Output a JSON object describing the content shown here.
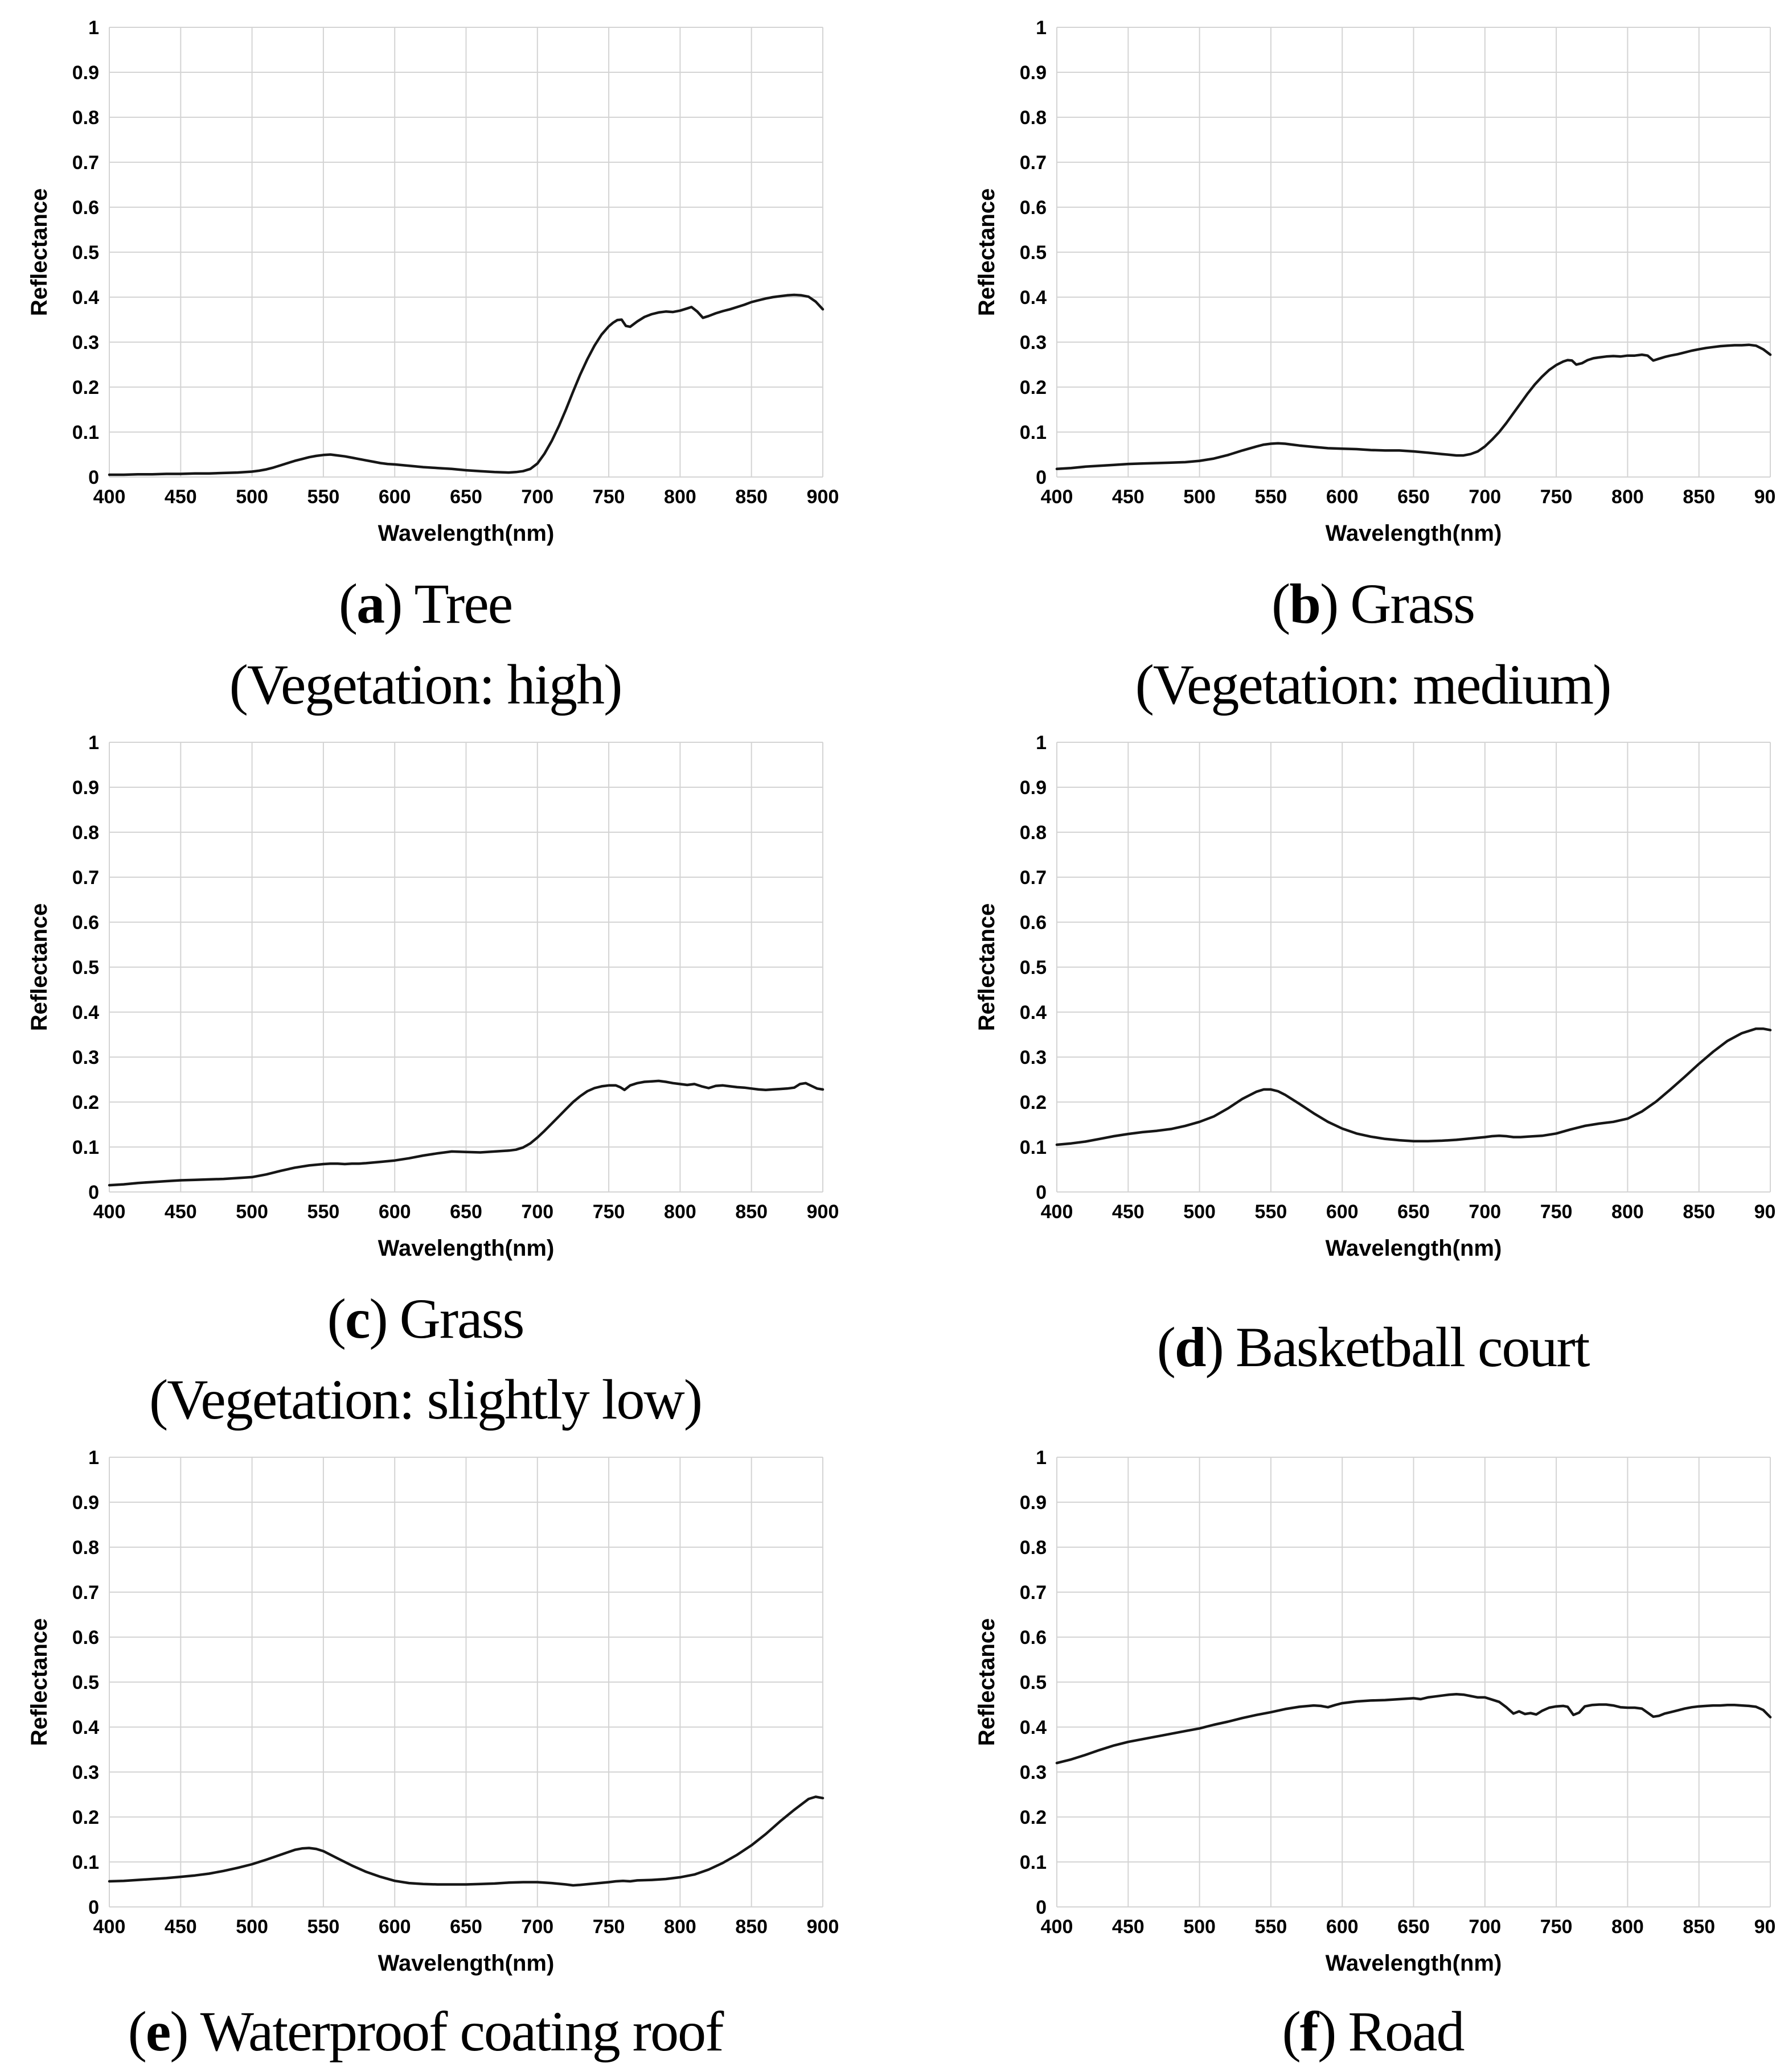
{
  "colors": {
    "background": "#ffffff",
    "grid": "#d4d4d4",
    "line": "#161616",
    "text": "#000000"
  },
  "axes": {
    "x_tick_values": [
      400,
      450,
      500,
      550,
      600,
      650,
      700,
      750,
      800,
      850,
      900
    ],
    "x_tick_labels": [
      "400",
      "450",
      "500",
      "550",
      "600",
      "650",
      "700",
      "750",
      "800",
      "850",
      "900"
    ],
    "y_tick_values": [
      0,
      0.1,
      0.2,
      0.3,
      0.4,
      0.5,
      0.6,
      0.7,
      0.8,
      0.9,
      1
    ],
    "y_tick_labels": [
      "0",
      "0.1",
      "0.2",
      "0.3",
      "0.4",
      "0.5",
      "0.6",
      "0.7",
      "0.8",
      "0.9",
      "1"
    ]
  },
  "chart_data": [
    {
      "id": "a",
      "type": "line",
      "caption": {
        "open": "(",
        "letter": "a",
        "close": ")",
        "title": "Tree",
        "subtitle": "(Vegetation: high)"
      },
      "xlabel": "Wavelength(nm)",
      "ylabel": "Reflectance",
      "xlim": [
        400,
        900
      ],
      "ylim": [
        0,
        1
      ],
      "grid": true,
      "x": [
        400,
        410,
        420,
        430,
        440,
        450,
        460,
        470,
        480,
        490,
        500,
        505,
        510,
        515,
        520,
        525,
        530,
        535,
        540,
        545,
        550,
        555,
        560,
        565,
        570,
        575,
        580,
        585,
        590,
        595,
        600,
        610,
        620,
        630,
        640,
        650,
        660,
        670,
        680,
        685,
        690,
        695,
        700,
        705,
        710,
        715,
        720,
        725,
        730,
        735,
        740,
        745,
        750,
        753,
        756,
        759,
        762,
        765,
        770,
        775,
        780,
        785,
        790,
        795,
        800,
        805,
        808,
        812,
        816,
        820,
        825,
        830,
        835,
        840,
        845,
        850,
        855,
        860,
        865,
        870,
        875,
        880,
        885,
        890,
        895,
        900
      ],
      "y": [
        0.005,
        0.005,
        0.006,
        0.006,
        0.007,
        0.007,
        0.008,
        0.008,
        0.009,
        0.01,
        0.012,
        0.014,
        0.017,
        0.021,
        0.026,
        0.031,
        0.036,
        0.04,
        0.044,
        0.047,
        0.049,
        0.05,
        0.048,
        0.046,
        0.043,
        0.04,
        0.037,
        0.034,
        0.031,
        0.029,
        0.028,
        0.025,
        0.022,
        0.02,
        0.018,
        0.015,
        0.013,
        0.011,
        0.01,
        0.011,
        0.013,
        0.018,
        0.03,
        0.052,
        0.08,
        0.113,
        0.15,
        0.19,
        0.228,
        0.262,
        0.292,
        0.317,
        0.335,
        0.343,
        0.349,
        0.35,
        0.336,
        0.334,
        0.346,
        0.356,
        0.362,
        0.366,
        0.368,
        0.367,
        0.37,
        0.375,
        0.378,
        0.368,
        0.354,
        0.358,
        0.364,
        0.369,
        0.373,
        0.378,
        0.383,
        0.389,
        0.393,
        0.397,
        0.4,
        0.402,
        0.404,
        0.405,
        0.404,
        0.401,
        0.39,
        0.373
      ]
    },
    {
      "id": "b",
      "type": "line",
      "caption": {
        "open": "(",
        "letter": "b",
        "close": ")",
        "title": "Grass",
        "subtitle": "(Vegetation: medium)"
      },
      "xlabel": "Wavelength(nm)",
      "ylabel": "Reflectance",
      "xlim": [
        400,
        900
      ],
      "ylim": [
        0,
        1
      ],
      "grid": true,
      "x": [
        400,
        410,
        420,
        430,
        440,
        450,
        460,
        470,
        480,
        490,
        500,
        510,
        520,
        530,
        540,
        545,
        550,
        555,
        560,
        565,
        570,
        580,
        590,
        600,
        610,
        620,
        630,
        640,
        650,
        660,
        670,
        680,
        685,
        690,
        695,
        700,
        705,
        710,
        715,
        720,
        725,
        730,
        735,
        740,
        745,
        750,
        755,
        758,
        761,
        764,
        768,
        772,
        776,
        780,
        785,
        790,
        795,
        800,
        805,
        810,
        814,
        818,
        822,
        826,
        830,
        835,
        840,
        845,
        850,
        855,
        860,
        865,
        870,
        875,
        880,
        885,
        890,
        895,
        900
      ],
      "y": [
        0.018,
        0.02,
        0.023,
        0.025,
        0.027,
        0.029,
        0.03,
        0.031,
        0.032,
        0.033,
        0.036,
        0.041,
        0.049,
        0.059,
        0.068,
        0.072,
        0.074,
        0.075,
        0.074,
        0.072,
        0.07,
        0.067,
        0.064,
        0.063,
        0.062,
        0.06,
        0.059,
        0.059,
        0.057,
        0.054,
        0.051,
        0.048,
        0.048,
        0.051,
        0.057,
        0.068,
        0.083,
        0.1,
        0.12,
        0.142,
        0.164,
        0.186,
        0.206,
        0.223,
        0.238,
        0.249,
        0.257,
        0.26,
        0.259,
        0.25,
        0.253,
        0.26,
        0.264,
        0.266,
        0.268,
        0.269,
        0.268,
        0.27,
        0.27,
        0.272,
        0.27,
        0.259,
        0.263,
        0.267,
        0.27,
        0.273,
        0.277,
        0.281,
        0.284,
        0.287,
        0.289,
        0.291,
        0.292,
        0.293,
        0.293,
        0.294,
        0.292,
        0.284,
        0.272
      ]
    },
    {
      "id": "c",
      "type": "line",
      "caption": {
        "open": "(",
        "letter": "c",
        "close": ")",
        "title": "Grass",
        "subtitle": "(Vegetation: slightly low)"
      },
      "xlabel": "Wavelength(nm)",
      "ylabel": "Reflectance",
      "xlim": [
        400,
        900
      ],
      "ylim": [
        0,
        1
      ],
      "grid": true,
      "x": [
        400,
        410,
        420,
        430,
        440,
        450,
        460,
        470,
        480,
        490,
        500,
        510,
        520,
        530,
        540,
        550,
        555,
        560,
        565,
        570,
        575,
        580,
        590,
        600,
        610,
        620,
        630,
        640,
        650,
        660,
        670,
        680,
        685,
        690,
        695,
        700,
        705,
        710,
        715,
        720,
        725,
        730,
        735,
        740,
        745,
        750,
        755,
        758,
        761,
        765,
        770,
        775,
        780,
        785,
        790,
        795,
        800,
        805,
        810,
        815,
        820,
        825,
        830,
        835,
        840,
        845,
        850,
        855,
        860,
        865,
        870,
        875,
        880,
        884,
        888,
        892,
        896,
        900
      ],
      "y": [
        0.015,
        0.017,
        0.02,
        0.022,
        0.024,
        0.026,
        0.027,
        0.028,
        0.029,
        0.031,
        0.033,
        0.039,
        0.047,
        0.054,
        0.059,
        0.062,
        0.063,
        0.063,
        0.062,
        0.063,
        0.063,
        0.064,
        0.067,
        0.07,
        0.075,
        0.081,
        0.086,
        0.09,
        0.089,
        0.088,
        0.09,
        0.092,
        0.094,
        0.099,
        0.108,
        0.121,
        0.136,
        0.152,
        0.168,
        0.184,
        0.2,
        0.213,
        0.224,
        0.231,
        0.235,
        0.237,
        0.237,
        0.233,
        0.227,
        0.237,
        0.242,
        0.245,
        0.246,
        0.247,
        0.245,
        0.242,
        0.24,
        0.238,
        0.24,
        0.235,
        0.231,
        0.236,
        0.237,
        0.235,
        0.233,
        0.232,
        0.23,
        0.228,
        0.227,
        0.228,
        0.229,
        0.23,
        0.232,
        0.24,
        0.242,
        0.236,
        0.23,
        0.228
      ]
    },
    {
      "id": "d",
      "type": "line",
      "caption": {
        "open": "(",
        "letter": "d",
        "close": ")",
        "title": "Basketball court",
        "subtitle": ""
      },
      "xlabel": "Wavelength(nm)",
      "ylabel": "Reflectance",
      "xlim": [
        400,
        900
      ],
      "ylim": [
        0,
        1
      ],
      "grid": true,
      "x": [
        400,
        410,
        420,
        430,
        440,
        450,
        460,
        470,
        480,
        490,
        500,
        510,
        520,
        530,
        540,
        545,
        550,
        555,
        560,
        570,
        580,
        590,
        600,
        610,
        620,
        630,
        640,
        650,
        660,
        670,
        680,
        690,
        700,
        705,
        710,
        715,
        720,
        725,
        730,
        740,
        750,
        760,
        770,
        780,
        790,
        800,
        810,
        820,
        830,
        840,
        850,
        860,
        870,
        880,
        890,
        895,
        900
      ],
      "y": [
        0.105,
        0.108,
        0.112,
        0.118,
        0.124,
        0.129,
        0.133,
        0.136,
        0.14,
        0.147,
        0.156,
        0.168,
        0.186,
        0.207,
        0.223,
        0.228,
        0.228,
        0.224,
        0.216,
        0.196,
        0.175,
        0.156,
        0.141,
        0.13,
        0.123,
        0.118,
        0.115,
        0.113,
        0.113,
        0.114,
        0.116,
        0.119,
        0.122,
        0.124,
        0.125,
        0.124,
        0.122,
        0.122,
        0.123,
        0.125,
        0.13,
        0.139,
        0.147,
        0.152,
        0.156,
        0.163,
        0.179,
        0.201,
        0.228,
        0.256,
        0.285,
        0.312,
        0.336,
        0.353,
        0.363,
        0.363,
        0.36
      ]
    },
    {
      "id": "e",
      "type": "line",
      "caption": {
        "open": "(",
        "letter": "e",
        "close": ")",
        "title": "Waterproof coating roof",
        "subtitle": ""
      },
      "xlabel": "Wavelength(nm)",
      "ylabel": "Reflectance",
      "xlim": [
        400,
        900
      ],
      "ylim": [
        0,
        1
      ],
      "grid": true,
      "x": [
        400,
        410,
        420,
        430,
        440,
        450,
        460,
        470,
        480,
        490,
        500,
        510,
        520,
        530,
        535,
        540,
        545,
        550,
        560,
        570,
        580,
        590,
        600,
        610,
        620,
        630,
        640,
        650,
        660,
        670,
        680,
        690,
        700,
        710,
        720,
        725,
        730,
        740,
        750,
        755,
        760,
        765,
        770,
        780,
        790,
        800,
        810,
        820,
        830,
        840,
        850,
        860,
        870,
        880,
        890,
        895,
        900
      ],
      "y": [
        0.057,
        0.058,
        0.06,
        0.062,
        0.064,
        0.067,
        0.07,
        0.074,
        0.08,
        0.087,
        0.095,
        0.105,
        0.116,
        0.127,
        0.13,
        0.131,
        0.129,
        0.124,
        0.108,
        0.092,
        0.078,
        0.067,
        0.058,
        0.053,
        0.051,
        0.05,
        0.05,
        0.05,
        0.051,
        0.052,
        0.054,
        0.055,
        0.055,
        0.053,
        0.05,
        0.048,
        0.049,
        0.052,
        0.055,
        0.057,
        0.058,
        0.057,
        0.059,
        0.06,
        0.062,
        0.066,
        0.072,
        0.083,
        0.098,
        0.116,
        0.137,
        0.162,
        0.19,
        0.216,
        0.24,
        0.245,
        0.242
      ]
    },
    {
      "id": "f",
      "type": "line",
      "caption": {
        "open": "(",
        "letter": "f",
        "close": ")",
        "title": "Road",
        "subtitle": ""
      },
      "xlabel": "Wavelength(nm)",
      "ylabel": "Reflectance",
      "xlim": [
        400,
        900
      ],
      "ylim": [
        0,
        1
      ],
      "grid": true,
      "x": [
        400,
        410,
        420,
        430,
        440,
        450,
        460,
        470,
        480,
        490,
        500,
        510,
        520,
        530,
        540,
        550,
        560,
        570,
        580,
        585,
        590,
        595,
        600,
        610,
        620,
        630,
        640,
        650,
        655,
        660,
        665,
        670,
        675,
        680,
        685,
        690,
        695,
        700,
        705,
        710,
        715,
        720,
        724,
        728,
        732,
        736,
        740,
        745,
        750,
        755,
        758,
        762,
        766,
        770,
        775,
        780,
        785,
        790,
        795,
        800,
        805,
        810,
        814,
        818,
        822,
        826,
        830,
        835,
        840,
        845,
        850,
        855,
        860,
        865,
        870,
        875,
        880,
        885,
        890,
        895,
        900
      ],
      "y": [
        0.32,
        0.328,
        0.338,
        0.349,
        0.359,
        0.367,
        0.373,
        0.379,
        0.385,
        0.391,
        0.397,
        0.405,
        0.412,
        0.42,
        0.427,
        0.433,
        0.44,
        0.445,
        0.448,
        0.447,
        0.444,
        0.449,
        0.453,
        0.457,
        0.459,
        0.46,
        0.462,
        0.464,
        0.462,
        0.466,
        0.468,
        0.47,
        0.472,
        0.473,
        0.472,
        0.469,
        0.466,
        0.466,
        0.461,
        0.456,
        0.444,
        0.43,
        0.435,
        0.429,
        0.431,
        0.428,
        0.436,
        0.443,
        0.446,
        0.447,
        0.445,
        0.427,
        0.432,
        0.446,
        0.449,
        0.45,
        0.45,
        0.448,
        0.444,
        0.443,
        0.443,
        0.441,
        0.432,
        0.423,
        0.425,
        0.43,
        0.433,
        0.437,
        0.441,
        0.444,
        0.446,
        0.447,
        0.448,
        0.448,
        0.449,
        0.449,
        0.448,
        0.447,
        0.445,
        0.438,
        0.422
      ]
    }
  ]
}
